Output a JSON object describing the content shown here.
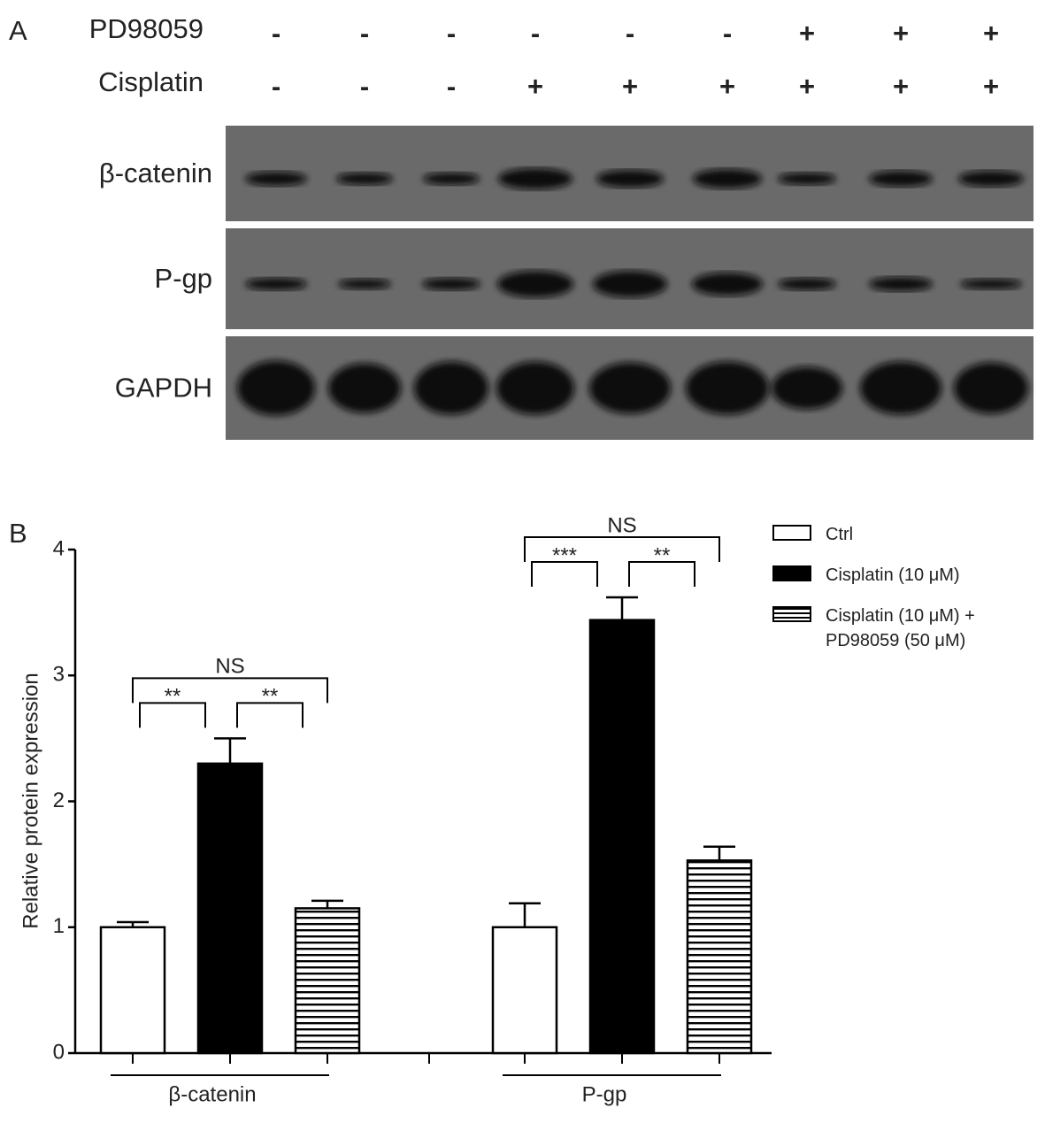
{
  "panel_a": {
    "label": "A",
    "treatments": [
      {
        "name": "PD98059",
        "signs": [
          "-",
          "-",
          "-",
          "-",
          "-",
          "-",
          "+",
          "+",
          "+"
        ]
      },
      {
        "name": "Cisplatin",
        "signs": [
          "-",
          "-",
          "-",
          "+",
          "+",
          "+",
          "+",
          "+",
          "+"
        ]
      }
    ],
    "blots": [
      "β-catenin",
      "P-gp",
      "GAPDH"
    ]
  },
  "chart_data": {
    "type": "bar",
    "panel_label": "B",
    "ylabel": "Relative protein expression",
    "categories": [
      "β-catenin",
      "P-gp"
    ],
    "series": [
      {
        "name": "Ctrl",
        "color": "#ffffff",
        "values": [
          1.0,
          1.0
        ],
        "errors": [
          0.04,
          0.19
        ]
      },
      {
        "name": "Cisplatin (10 μM)",
        "color": "#000000",
        "values": [
          2.3,
          3.44
        ],
        "errors": [
          0.2,
          0.18
        ]
      },
      {
        "name": "Cisplatin (10 μM) + PD98059 (50 μM)",
        "color": "#000000",
        "hatch": "horizontal",
        "values": [
          1.15,
          1.53
        ],
        "errors": [
          0.06,
          0.11
        ]
      }
    ],
    "comparisons": [
      {
        "category": 0,
        "from": 0,
        "to": 1,
        "label": "**"
      },
      {
        "category": 0,
        "from": 1,
        "to": 2,
        "label": "**"
      },
      {
        "category": 0,
        "from": 0,
        "to": 2,
        "label": "NS"
      },
      {
        "category": 1,
        "from": 0,
        "to": 1,
        "label": "***"
      },
      {
        "category": 1,
        "from": 1,
        "to": 2,
        "label": "**"
      },
      {
        "category": 1,
        "from": 0,
        "to": 2,
        "label": "NS"
      }
    ],
    "ylim": [
      0,
      4
    ],
    "yticks": [
      0,
      1,
      2,
      3,
      4
    ],
    "legend": "upper right"
  }
}
